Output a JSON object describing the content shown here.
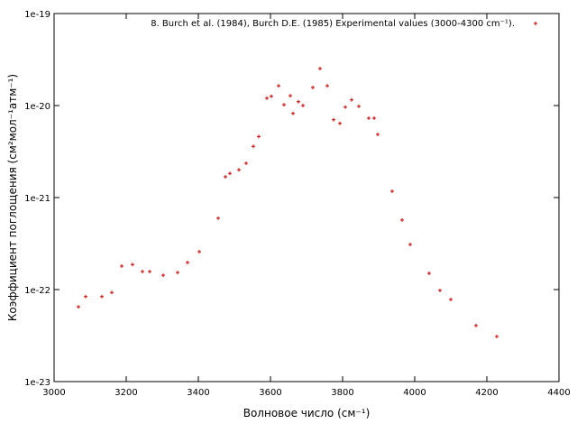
{
  "chart_data": {
    "type": "scatter",
    "xlabel": "Волновое число (см⁻¹)",
    "ylabel": "Коэффициент поглощения (см²мол⁻¹атм⁻¹)",
    "xlim": [
      3000,
      4400
    ],
    "xticks": [
      3000,
      3200,
      3400,
      3600,
      3800,
      4000,
      4200,
      4400
    ],
    "ylim": [
      1e-23,
      1e-19
    ],
    "yticks": [
      1e-23,
      1e-22,
      1e-21,
      1e-20,
      1e-19
    ],
    "yscale": "log",
    "legend": "top-right",
    "series": [
      {
        "name": "8. Burch et al. (1984), Burch D.E. (1985) Experimental values (3000-4300 cm⁻¹).",
        "color": "#cc0000",
        "x": [
          3067.5,
          3087.5,
          3132.5,
          3160,
          3187.5,
          3217.5,
          3245,
          3265,
          3302.5,
          3342.5,
          3370,
          3402.5,
          3455,
          3475,
          3487.5,
          3512.5,
          3532.5,
          3552.5,
          3567.5,
          3590,
          3602.5,
          3622.5,
          3637.5,
          3655,
          3662.5,
          3677.5,
          3690,
          3717.5,
          3737.5,
          3757.5,
          3775,
          3792.5,
          3807.5,
          3825,
          3845,
          3872.5,
          3887.5,
          3897.5,
          3937.5,
          3965,
          3987.5,
          4040,
          4070,
          4100,
          4170,
          4227.5
        ],
        "values": [
          6.5e-23,
          8.4e-23,
          8.4e-23,
          9.3e-23,
          1.8e-22,
          1.87e-22,
          1.57e-22,
          1.57e-22,
          1.43e-22,
          1.53e-22,
          1.97e-22,
          2.58e-22,
          5.96e-22,
          1.68e-21,
          1.83e-21,
          2e-21,
          2.36e-21,
          3.6e-21,
          4.6e-21,
          1.2e-20,
          1.26e-20,
          1.64e-20,
          1.02e-20,
          1.28e-20,
          8.2e-21,
          1.1e-20,
          1e-20,
          1.57e-20,
          2.52e-20,
          1.64e-20,
          7e-21,
          6.4e-21,
          9.6e-21,
          1.15e-20,
          9.8e-21,
          7.3e-21,
          7.3e-21,
          4.85e-21,
          1.17e-21,
          5.7e-22,
          3.09e-22,
          1.5e-22,
          9.8e-23,
          7.8e-23,
          4.06e-23,
          3.09e-23
        ]
      }
    ]
  }
}
